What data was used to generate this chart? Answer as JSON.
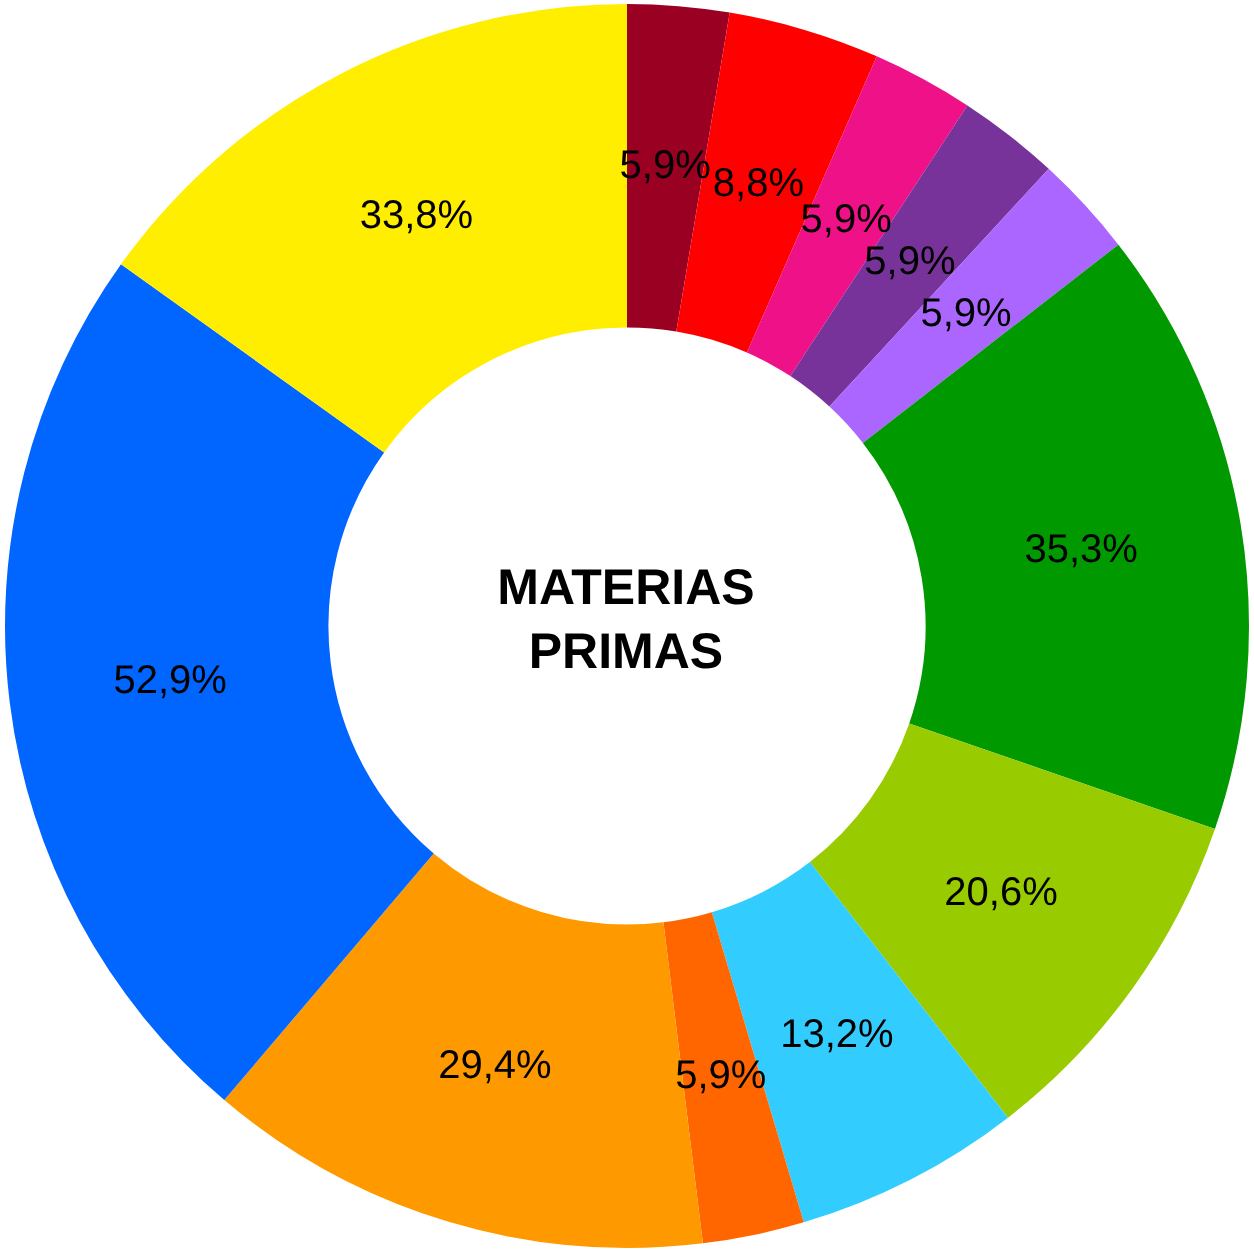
{
  "chart_data": {
    "type": "donut",
    "title": "MATERIAS PRIMAS",
    "categories": [
      null,
      null,
      null,
      null,
      null,
      null,
      null,
      null,
      null,
      null,
      null,
      null
    ],
    "values": [
      5.9,
      8.8,
      5.9,
      5.9,
      5.9,
      35.3,
      20.6,
      13.2,
      5.9,
      29.4,
      52.9,
      33.8
    ],
    "value_labels": [
      "5,9%",
      "8,8%",
      "5,9%",
      "5,9%",
      "5,9%",
      "35,3%",
      "20,6%",
      "13,2%",
      "5,9%",
      "29,4%",
      "52,9%",
      "33,8%"
    ],
    "colors": [
      "#990022",
      "#ff0000",
      "#ee1188",
      "#773399",
      "#aa66ff",
      "#009900",
      "#99cc00",
      "#33ccff",
      "#ff6600",
      "#ff9900",
      "#0066ff",
      "#ffee00"
    ],
    "legend": false
  }
}
